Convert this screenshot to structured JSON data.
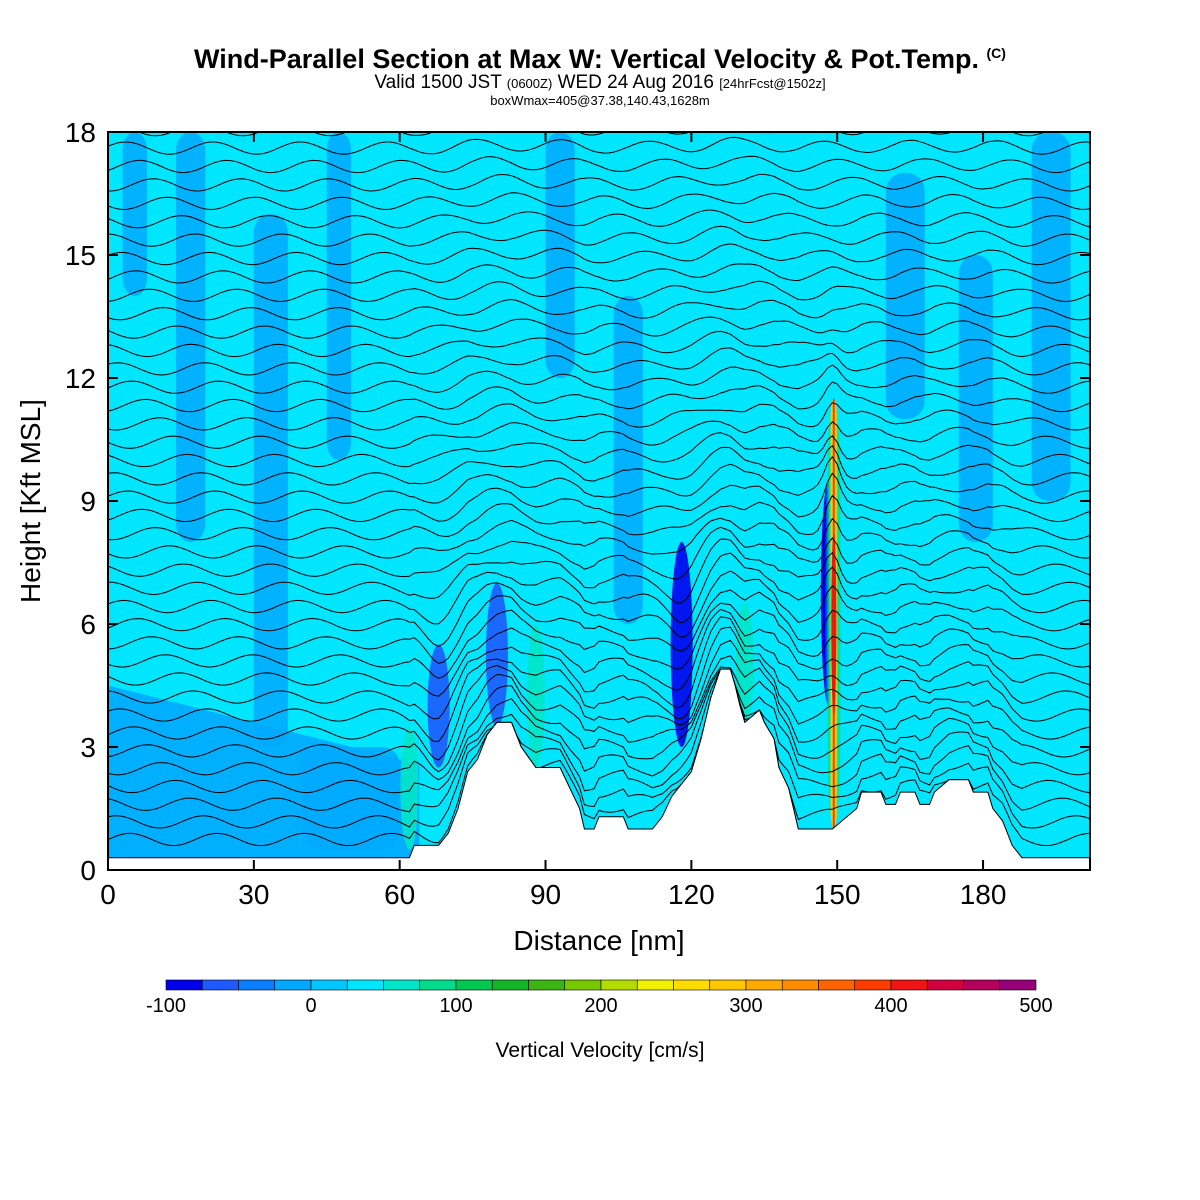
{
  "header": {
    "title_main": "Wind-Parallel Section at Max W: Vertical Velocity & Pot.Temp.",
    "title_tag": "(C)",
    "valid_prefix": "Valid 1500 JST",
    "valid_utc": "(0600Z)",
    "valid_date": "WED 24 Aug 2016",
    "valid_fcst": "[24hrFcst@1502z]",
    "box_info": "boxWmax=405@37.38,140.43,1628m"
  },
  "chart_data": {
    "type": "heatmap",
    "title": "Wind-Parallel Section at Max W: Vertical Velocity & Pot.Temp.",
    "xlabel": "Distance [nm]",
    "ylabel": "Height [Kft MSL]",
    "xlim": [
      0,
      202
    ],
    "ylim": [
      0,
      18
    ],
    "x_ticks": [
      "0",
      "30",
      "60",
      "90",
      "120",
      "150",
      "180"
    ],
    "y_ticks": [
      "0",
      "3",
      "6",
      "9",
      "12",
      "15",
      "18"
    ],
    "background_value_cm_s": 0,
    "colorbar": {
      "title": "Vertical Velocity [cm/s]",
      "min": -100,
      "max": 500,
      "step": 25,
      "tick_labels": [
        "-100",
        "0",
        "100",
        "200",
        "300",
        "400",
        "500"
      ],
      "colors": [
        "#0000ee",
        "#1e5aff",
        "#0a7dff",
        "#00a8ff",
        "#00c8ff",
        "#00e6ff",
        "#00e6c8",
        "#00dc8c",
        "#00c850",
        "#14b428",
        "#3cb414",
        "#78c800",
        "#b4dc00",
        "#f0f000",
        "#ffdc00",
        "#ffc800",
        "#ffaa00",
        "#ff8c00",
        "#ff6400",
        "#ff3c00",
        "#f01414",
        "#d2003c",
        "#b4005a",
        "#960078"
      ]
    },
    "terrain": [
      [
        0,
        0.3
      ],
      [
        10,
        0.3
      ],
      [
        30,
        0.3
      ],
      [
        50,
        0.3
      ],
      [
        60,
        0.3
      ],
      [
        62,
        0.3
      ],
      [
        63,
        0.6
      ],
      [
        68,
        0.6
      ],
      [
        70,
        0.9
      ],
      [
        72,
        1.5
      ],
      [
        74,
        2.4
      ],
      [
        76,
        2.7
      ],
      [
        78,
        3.3
      ],
      [
        80,
        3.6
      ],
      [
        83,
        3.6
      ],
      [
        85,
        3.0
      ],
      [
        88,
        2.5
      ],
      [
        93,
        2.5
      ],
      [
        95,
        2.0
      ],
      [
        97,
        1.5
      ],
      [
        98,
        1.0
      ],
      [
        100,
        1.0
      ],
      [
        101,
        1.3
      ],
      [
        106,
        1.3
      ],
      [
        107,
        1.0
      ],
      [
        112,
        1.0
      ],
      [
        114,
        1.3
      ],
      [
        116,
        1.8
      ],
      [
        118,
        2.1
      ],
      [
        120,
        2.4
      ],
      [
        122,
        3.2
      ],
      [
        124,
        4.2
      ],
      [
        126,
        4.9
      ],
      [
        128,
        4.9
      ],
      [
        129,
        4.5
      ],
      [
        130,
        4.0
      ],
      [
        131,
        3.6
      ],
      [
        134,
        3.9
      ],
      [
        135,
        3.6
      ],
      [
        137,
        3.2
      ],
      [
        138,
        2.5
      ],
      [
        140,
        2.0
      ],
      [
        141,
        1.5
      ],
      [
        142,
        1.0
      ],
      [
        145,
        1.0
      ],
      [
        149,
        1.0
      ],
      [
        150,
        1.1
      ],
      [
        154,
        1.5
      ],
      [
        155,
        1.9
      ],
      [
        159,
        1.9
      ],
      [
        160,
        1.6
      ],
      [
        162,
        1.6
      ],
      [
        163,
        1.9
      ],
      [
        166,
        1.9
      ],
      [
        167,
        1.6
      ],
      [
        169,
        1.6
      ],
      [
        170,
        1.9
      ],
      [
        173,
        2.2
      ],
      [
        177,
        2.2
      ],
      [
        178,
        1.9
      ],
      [
        181,
        1.9
      ],
      [
        182,
        1.5
      ],
      [
        184,
        1.2
      ],
      [
        185,
        0.9
      ],
      [
        186,
        0.6
      ],
      [
        188,
        0.3
      ],
      [
        202,
        0.3
      ]
    ],
    "updraft_core": {
      "x": 149.3,
      "base": 1.0,
      "top": 11.5,
      "peak_cm_s": 405
    },
    "features": [
      {
        "x": 62,
        "y_bottom": 0.5,
        "y_top": 3.5,
        "w_cm_s": 60
      },
      {
        "x": 73,
        "y_bottom": 3.0,
        "y_top": 6.0,
        "w_cm_s": 40
      },
      {
        "x": 88,
        "y_bottom": 2.5,
        "y_top": 6.0,
        "w_cm_s": 50
      },
      {
        "x": 131,
        "y_bottom": 3.5,
        "y_top": 6.5,
        "w_cm_s": 60
      },
      {
        "x": 126,
        "y_bottom": 9.5,
        "y_top": 11.5,
        "w_cm_s": 40
      },
      {
        "x": 68,
        "y_bottom": 2.5,
        "y_top": 5.5,
        "w_cm_s": -60
      },
      {
        "x": 80,
        "y_bottom": 3.5,
        "y_top": 7.0,
        "w_cm_s": -70
      },
      {
        "x": 118,
        "y_bottom": 3.0,
        "y_top": 8.0,
        "w_cm_s": -80
      }
    ]
  }
}
